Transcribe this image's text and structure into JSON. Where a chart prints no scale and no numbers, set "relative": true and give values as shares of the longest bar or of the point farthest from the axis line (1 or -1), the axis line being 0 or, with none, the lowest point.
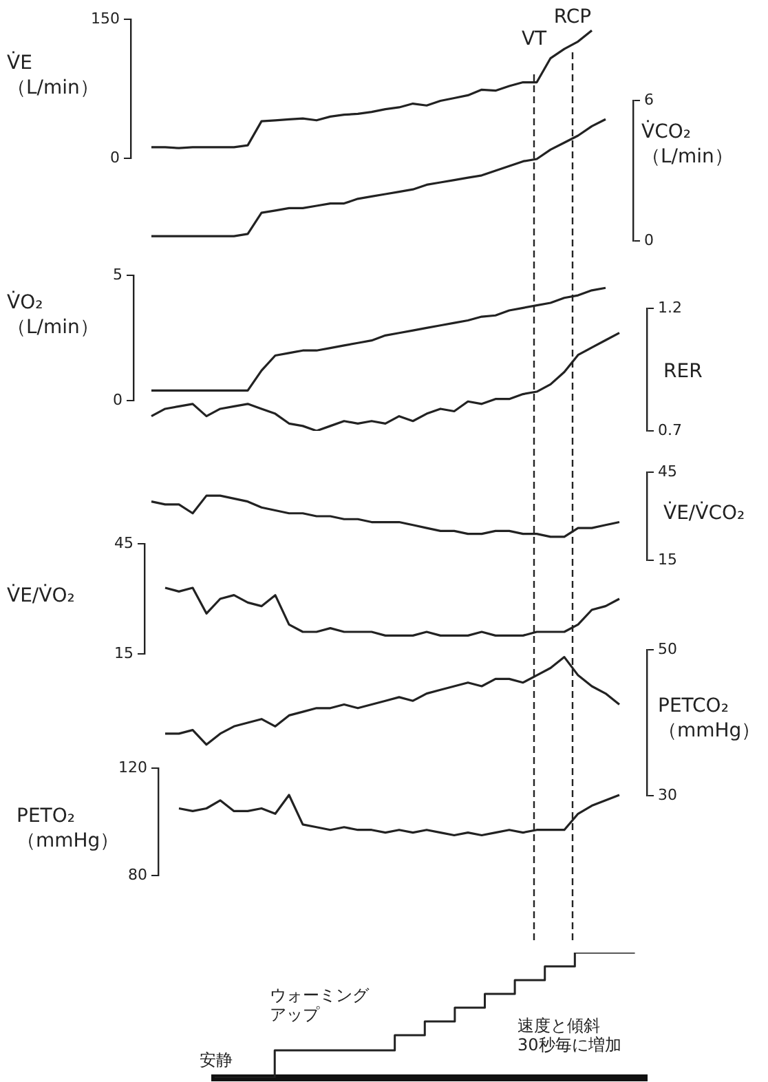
{
  "chart_data": [
    {
      "type": "line",
      "ylabel": "V̇E\n（L/min）",
      "ylim": [
        0,
        150
      ],
      "yticks": [
        0,
        150
      ],
      "color": "#222222",
      "categories": [
        null,
        null,
        null,
        null,
        null,
        null,
        null,
        null,
        null,
        null,
        null,
        null,
        null,
        null,
        null,
        null,
        null,
        null,
        null,
        null,
        null,
        null,
        null,
        null,
        null,
        null,
        null,
        null,
        null,
        null,
        null,
        null,
        null,
        null,
        null
      ],
      "values": [
        12,
        12,
        11,
        12,
        12,
        12,
        12,
        14,
        40,
        41,
        42,
        43,
        41,
        45,
        47,
        48,
        50,
        53,
        55,
        59,
        57,
        62,
        65,
        68,
        74,
        73,
        78,
        82,
        82,
        108,
        118,
        126,
        138,
        null,
        null
      ],
      "annotations": [
        "VT",
        "RCP"
      ]
    },
    {
      "type": "line",
      "ylabel": "V̇CO₂\n（L/min）",
      "ylim": [
        0,
        6
      ],
      "yticks": [
        0,
        6
      ],
      "color": "#222222",
      "categories": [
        null,
        null,
        null,
        null,
        null,
        null,
        null,
        null,
        null,
        null,
        null,
        null,
        null,
        null,
        null,
        null,
        null,
        null,
        null,
        null,
        null,
        null,
        null,
        null,
        null,
        null,
        null,
        null,
        null,
        null,
        null,
        null,
        null,
        null,
        null
      ],
      "values": [
        0.2,
        0.2,
        0.2,
        0.2,
        0.2,
        0.2,
        0.2,
        0.3,
        1.2,
        1.3,
        1.4,
        1.4,
        1.5,
        1.6,
        1.6,
        1.8,
        1.9,
        2.0,
        2.1,
        2.2,
        2.4,
        2.5,
        2.6,
        2.7,
        2.8,
        3.0,
        3.2,
        3.4,
        3.5,
        3.9,
        4.2,
        4.5,
        4.9,
        5.2,
        null
      ]
    },
    {
      "type": "line",
      "ylabel": "V̇O₂\n（L/min）",
      "ylim": [
        0,
        5
      ],
      "yticks": [
        0,
        5
      ],
      "color": "#222222",
      "categories": [
        null,
        null,
        null,
        null,
        null,
        null,
        null,
        null,
        null,
        null,
        null,
        null,
        null,
        null,
        null,
        null,
        null,
        null,
        null,
        null,
        null,
        null,
        null,
        null,
        null,
        null,
        null,
        null,
        null,
        null,
        null,
        null,
        null,
        null,
        null
      ],
      "values": [
        0.4,
        0.4,
        0.4,
        0.4,
        0.4,
        0.4,
        0.4,
        0.4,
        1.2,
        1.8,
        1.9,
        2.0,
        2.0,
        2.1,
        2.2,
        2.3,
        2.4,
        2.6,
        2.7,
        2.8,
        2.9,
        3.0,
        3.1,
        3.2,
        3.35,
        3.4,
        3.6,
        3.7,
        3.8,
        3.9,
        4.1,
        4.2,
        4.4,
        4.5,
        null
      ]
    },
    {
      "type": "line",
      "ylabel": "RER",
      "ylim": [
        0.7,
        1.2
      ],
      "yticks": [
        0.7,
        1.2
      ],
      "color": "#222222",
      "categories": [
        null,
        null,
        null,
        null,
        null,
        null,
        null,
        null,
        null,
        null,
        null,
        null,
        null,
        null,
        null,
        null,
        null,
        null,
        null,
        null,
        null,
        null,
        null,
        null,
        null,
        null,
        null,
        null,
        null,
        null,
        null,
        null,
        null,
        null,
        null
      ],
      "values": [
        0.76,
        0.79,
        0.8,
        0.81,
        0.76,
        0.79,
        0.8,
        0.81,
        0.79,
        0.77,
        0.73,
        0.72,
        0.7,
        0.72,
        0.74,
        0.73,
        0.74,
        0.73,
        0.76,
        0.74,
        0.77,
        0.79,
        0.78,
        0.82,
        0.81,
        0.83,
        0.83,
        0.85,
        0.86,
        0.89,
        0.94,
        1.01,
        1.04,
        1.07,
        1.1
      ]
    },
    {
      "type": "line",
      "ylabel": "V̇E/V̇CO₂",
      "ylim": [
        15,
        45
      ],
      "yticks": [
        15,
        45
      ],
      "color": "#222222",
      "categories": [
        null,
        null,
        null,
        null,
        null,
        null,
        null,
        null,
        null,
        null,
        null,
        null,
        null,
        null,
        null,
        null,
        null,
        null,
        null,
        null,
        null,
        null,
        null,
        null,
        null,
        null,
        null,
        null,
        null,
        null,
        null,
        null,
        null,
        null,
        null
      ],
      "values": [
        35,
        34,
        34,
        31,
        37,
        37,
        36,
        35,
        33,
        32,
        31,
        31,
        30,
        30,
        29,
        29,
        28,
        28,
        28,
        27,
        26,
        25,
        25,
        24,
        24,
        25,
        25,
        24,
        24,
        23,
        23,
        26,
        26,
        27,
        28
      ]
    },
    {
      "type": "line",
      "ylabel": "V̇E/V̇O₂",
      "ylim": [
        15,
        45
      ],
      "yticks": [
        15,
        45
      ],
      "color": "#222222",
      "categories": [
        null,
        null,
        null,
        null,
        null,
        null,
        null,
        null,
        null,
        null,
        null,
        null,
        null,
        null,
        null,
        null,
        null,
        null,
        null,
        null,
        null,
        null,
        null,
        null,
        null,
        null,
        null,
        null,
        null,
        null,
        null,
        null,
        null,
        null,
        null
      ],
      "values": [
        null,
        33,
        32,
        33,
        26,
        30,
        31,
        29,
        28,
        31,
        23,
        21,
        21,
        22,
        21,
        21,
        21,
        20,
        20,
        20,
        21,
        20,
        20,
        20,
        21,
        20,
        20,
        20,
        21,
        21,
        21,
        23,
        27,
        28,
        30
      ]
    },
    {
      "type": "line",
      "ylabel": "PETCO₂\n（mmHg）",
      "ylim": [
        30,
        50
      ],
      "yticks": [
        30,
        50
      ],
      "color": "#222222",
      "categories": [
        null,
        null,
        null,
        null,
        null,
        null,
        null,
        null,
        null,
        null,
        null,
        null,
        null,
        null,
        null,
        null,
        null,
        null,
        null,
        null,
        null,
        null,
        null,
        null,
        null,
        null,
        null,
        null,
        null,
        null,
        null,
        null,
        null,
        null,
        null
      ],
      "values": [
        null,
        38.5,
        38.5,
        39,
        37,
        38.5,
        39.5,
        40,
        40.5,
        39.5,
        41,
        41.5,
        42,
        42,
        42.5,
        42,
        42.5,
        43,
        43.5,
        43,
        44,
        44.5,
        45,
        45.5,
        45,
        46,
        46,
        45.5,
        46.5,
        47.5,
        49,
        46.5,
        45,
        44,
        42.5
      ]
    },
    {
      "type": "line",
      "ylabel": "PETO₂\n（mmHg）",
      "ylim": [
        80,
        120
      ],
      "yticks": [
        80,
        120
      ],
      "color": "#222222",
      "categories": [
        null,
        null,
        null,
        null,
        null,
        null,
        null,
        null,
        null,
        null,
        null,
        null,
        null,
        null,
        null,
        null,
        null,
        null,
        null,
        null,
        null,
        null,
        null,
        null,
        null,
        null,
        null,
        null,
        null,
        null,
        null,
        null,
        null,
        null,
        null
      ],
      "values": [
        null,
        null,
        105,
        104,
        105,
        108,
        104,
        104,
        105,
        103,
        110,
        99,
        98,
        97,
        98,
        97,
        97,
        96,
        97,
        96,
        97,
        96,
        95,
        96,
        95,
        96,
        97,
        96,
        97,
        97,
        97,
        103,
        106,
        108,
        110
      ]
    },
    {
      "type": "step",
      "relative": true,
      "color": "#222222",
      "categories": [
        null,
        null,
        null,
        null,
        null,
        null,
        null,
        null,
        null,
        null,
        null,
        null,
        null,
        null,
        null
      ],
      "values": [
        0,
        0,
        0,
        0.22,
        0.22,
        0.22,
        0.22,
        0.34,
        0.45,
        0.56,
        0.67,
        0.78,
        0.89,
        1,
        1
      ],
      "annotations": [
        "安静",
        "ウォーミングアップ",
        "速度と傾斜\n30秒毎に増加"
      ]
    }
  ]
}
